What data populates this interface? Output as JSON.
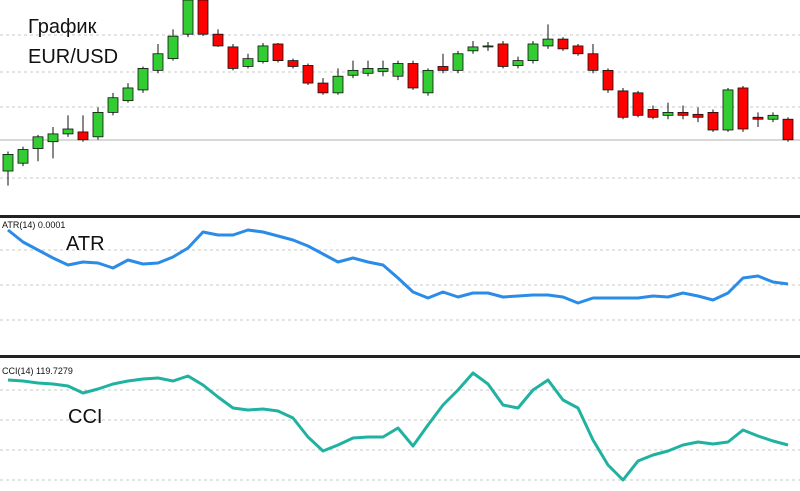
{
  "chart_data": [
    {
      "type": "candlestick",
      "annotations": [
        "График",
        "EUR/USD"
      ],
      "open": [
        45,
        53,
        68,
        75,
        83,
        85,
        80,
        105,
        117,
        128,
        148,
        160,
        185,
        220,
        185,
        172,
        152,
        157,
        175,
        158,
        153,
        135,
        125,
        143,
        145,
        147,
        142,
        155,
        125,
        152,
        148,
        168,
        172,
        175,
        153,
        158,
        173,
        180,
        173,
        165,
        148,
        127,
        125,
        108,
        102,
        105,
        103,
        105,
        87,
        130,
        100,
        98,
        98
      ],
      "high": [
        65,
        70,
        82,
        90,
        102,
        102,
        110,
        125,
        135,
        152,
        175,
        190,
        220,
        220,
        190,
        175,
        165,
        176,
        176,
        160,
        155,
        140,
        150,
        158,
        158,
        158,
        158,
        158,
        150,
        165,
        168,
        178,
        177,
        178,
        162,
        178,
        195,
        182,
        175,
        175,
        150,
        130,
        127,
        112,
        115,
        112,
        110,
        108,
        130,
        132,
        105,
        105,
        100
      ],
      "low": [
        30,
        50,
        55,
        58,
        80,
        75,
        77,
        102,
        115,
        125,
        145,
        158,
        182,
        183,
        172,
        148,
        150,
        155,
        156,
        150,
        133,
        123,
        123,
        140,
        142,
        142,
        138,
        128,
        122,
        145,
        145,
        165,
        168,
        150,
        150,
        155,
        170,
        168,
        163,
        145,
        125,
        98,
        100,
        98,
        98,
        98,
        95,
        85,
        85,
        85,
        90,
        95,
        75
      ],
      "close": [
        62,
        67,
        80,
        83,
        88,
        77,
        105,
        120,
        130,
        150,
        165,
        183,
        220,
        185,
        173,
        150,
        160,
        173,
        158,
        152,
        135,
        125,
        142,
        148,
        150,
        150,
        155,
        130,
        148,
        148,
        165,
        172,
        173,
        152,
        158,
        175,
        180,
        170,
        165,
        148,
        128,
        100,
        102,
        100,
        105,
        102,
        100,
        87,
        128,
        88,
        98,
        102,
        77
      ],
      "up_color": "#32cd32",
      "down_color": "#ff0000",
      "ylim": [
        0,
        220
      ]
    },
    {
      "type": "line",
      "label": "ATR(14) 0.0001",
      "annotation": "ATR",
      "color": "#2b8ce8",
      "ylim": [
        5,
        142
      ],
      "values": [
        130,
        118,
        110,
        102,
        95,
        98,
        97,
        92,
        100,
        96,
        97,
        103,
        112,
        128,
        125,
        125,
        130,
        128,
        124,
        120,
        114,
        106,
        98,
        102,
        98,
        95,
        82,
        68,
        62,
        68,
        63,
        67,
        67,
        63,
        64,
        65,
        65,
        63,
        57,
        62,
        62,
        62,
        62,
        64,
        63,
        67,
        64,
        60,
        67,
        82,
        84,
        78,
        76
      ]
    },
    {
      "type": "line",
      "label": "CCI(14) 119.7279",
      "annotation": "CCI",
      "color": "#20b2a0",
      "ylim": [
        -1,
        132
      ],
      "values": [
        110,
        109,
        107,
        106,
        104,
        97,
        101,
        106,
        109,
        111,
        112,
        109,
        114,
        105,
        93,
        82,
        80,
        81,
        79,
        72,
        53,
        39,
        45,
        52,
        53,
        53,
        62,
        44,
        65,
        85,
        100,
        117,
        106,
        85,
        82,
        100,
        110,
        90,
        82,
        50,
        25,
        10,
        29,
        35,
        39,
        45,
        48,
        46,
        48,
        60,
        54,
        49,
        45
      ]
    }
  ]
}
